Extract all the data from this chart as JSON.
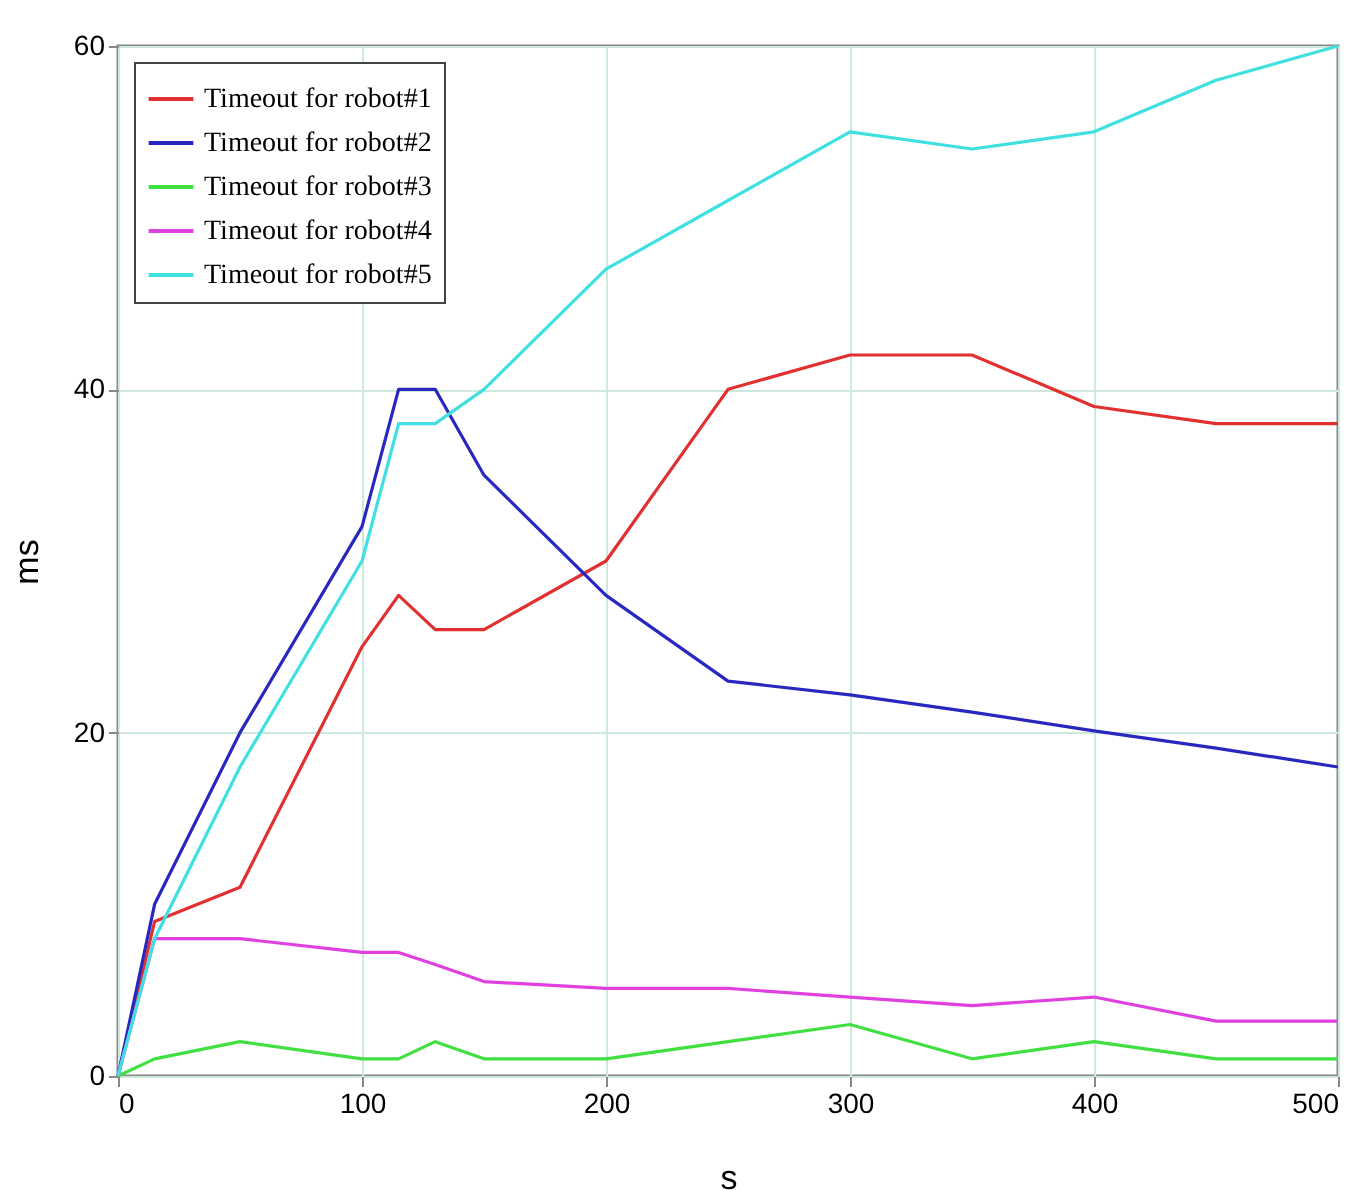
{
  "chart_data": {
    "type": "line",
    "xlabel": "s",
    "ylabel": "ms",
    "x": [
      0,
      15,
      50,
      100,
      115,
      130,
      150,
      200,
      250,
      300,
      350,
      400,
      450,
      500
    ],
    "series": [
      {
        "name": "Timeout for robot#1",
        "color": "#e03030",
        "values": [
          0,
          9,
          11,
          25,
          28,
          26,
          26,
          30,
          40,
          42,
          42,
          39,
          38,
          38
        ]
      },
      {
        "name": "Timeout for robot#2",
        "color": "#2828c0",
        "values": [
          0,
          10,
          20,
          32,
          40,
          40,
          35,
          28,
          23,
          22.2,
          21.2,
          20.1,
          19.1,
          18
        ]
      },
      {
        "name": "Timeout for robot#3",
        "color": "#40e040",
        "values": [
          0,
          1,
          2,
          1,
          1,
          2,
          1,
          1,
          2,
          3,
          1,
          2,
          1,
          1
        ]
      },
      {
        "name": "Timeout for robot#4",
        "color": "#e040e0",
        "values": [
          0,
          8,
          8,
          7.2,
          7.2,
          6.5,
          5.5,
          5.1,
          5.1,
          4.6,
          4.1,
          4.6,
          3.2,
          3.2
        ]
      },
      {
        "name": "Timeout for robot#5",
        "color": "#40e0e0",
        "values": [
          0,
          8,
          18,
          30,
          38,
          38,
          40,
          47,
          51,
          55,
          54,
          55,
          58,
          60
        ]
      }
    ],
    "xlim": [
      0,
      500
    ],
    "ylim": [
      0,
      60
    ],
    "xticks": [
      0,
      100,
      200,
      300,
      400,
      500
    ],
    "yticks": [
      0,
      20,
      40,
      60
    ],
    "grid": true,
    "legend": "top left",
    "line_style": "solid"
  }
}
